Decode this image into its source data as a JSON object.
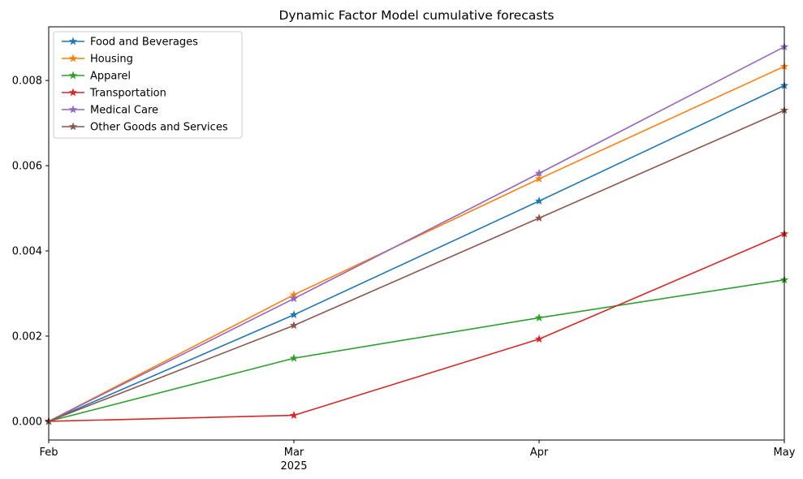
{
  "chart_data": {
    "type": "line",
    "title": "Dynamic Factor Model cumulative forecasts",
    "xlabel": "",
    "ylabel": "",
    "x": [
      "Feb",
      "Mar",
      "Apr",
      "May"
    ],
    "x_sublabels": [
      "",
      "2025",
      "",
      ""
    ],
    "ylim": [
      -0.00044,
      0.00926
    ],
    "yticks": [
      0.0,
      0.002,
      0.004,
      0.006,
      0.008
    ],
    "ytick_labels": [
      "0.000",
      "0.002",
      "0.004",
      "0.006",
      "0.008"
    ],
    "grid": false,
    "legend_position": "top-left",
    "marker": "star",
    "series": [
      {
        "name": "Food and Beverages",
        "color": "#1f77b4",
        "values": [
          0.0,
          0.0025,
          0.00517,
          0.00788
        ]
      },
      {
        "name": "Housing",
        "color": "#ff7f0e",
        "values": [
          0.0,
          0.00297,
          0.00569,
          0.00833
        ]
      },
      {
        "name": "Apparel",
        "color": "#2ca02c",
        "values": [
          0.0,
          0.00148,
          0.00243,
          0.00332
        ]
      },
      {
        "name": "Transportation",
        "color": "#d62728",
        "values": [
          0.0,
          0.00014,
          0.00193,
          0.0044
        ]
      },
      {
        "name": "Medical Care",
        "color": "#9467bd",
        "values": [
          0.0,
          0.00288,
          0.00582,
          0.00879
        ]
      },
      {
        "name": "Other Goods and Services",
        "color": "#8c564b",
        "values": [
          0.0,
          0.00225,
          0.00477,
          0.0073
        ]
      }
    ]
  }
}
